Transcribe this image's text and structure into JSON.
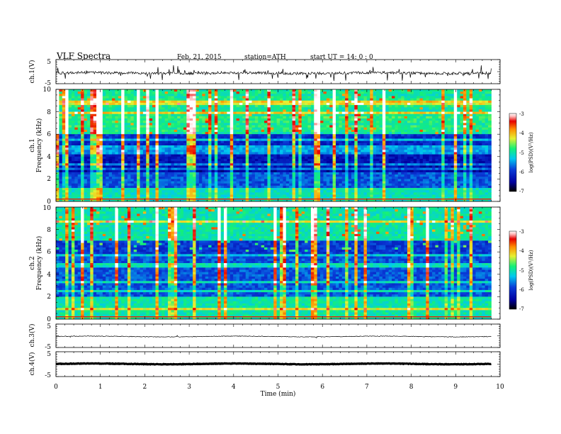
{
  "header": {
    "title": "VLF  Spectra",
    "date": "Feb. 21, 2015",
    "station": "station=ATH",
    "start": "start  UT  =    14: 0  : 0"
  },
  "colors": {
    "colormap": [
      "#000000",
      "#0000a0",
      "#0a3cd8",
      "#00c8f0",
      "#14f078",
      "#e6f032",
      "#ff8c00",
      "#e60000",
      "#ffb4b4",
      "#ffffff"
    ]
  },
  "chart_data": [
    {
      "type": "line",
      "panel": "ch1-waveform",
      "ylabel": "ch.1(V)",
      "ylim": [
        -5,
        5
      ],
      "yticks": [
        "5",
        "-5"
      ],
      "xlim": [
        0,
        10
      ],
      "description_of_series": "noisy waveform near -0.5 V with spikes"
    },
    {
      "type": "heatmap",
      "panel": "ch1-spectrogram",
      "ylabel": "Frequency  (kHz)",
      "channel_label": "ch.1",
      "ylim": [
        0,
        10
      ],
      "yticks": [
        "0",
        "2",
        "4",
        "6",
        "8",
        "10"
      ],
      "xlim": [
        0,
        10
      ],
      "colorbar": {
        "label": "log(PSD)(V²/Hz)",
        "range": [
          -7,
          -3
        ],
        "ticks": [
          "-3",
          "-4",
          "-5",
          "-6",
          "-7"
        ]
      }
    },
    {
      "type": "heatmap",
      "panel": "ch2-spectrogram",
      "ylabel": "Frequency  (kHz)",
      "channel_label": "ch.2",
      "ylim": [
        0,
        10
      ],
      "yticks": [
        "0",
        "2",
        "4",
        "6",
        "8",
        "10"
      ],
      "xlim": [
        0,
        10
      ],
      "colorbar": {
        "label": "log(PSD)(V²/Hz)",
        "range": [
          -7,
          -3
        ],
        "ticks": [
          "-3",
          "-4",
          "-5",
          "-6",
          "-7"
        ]
      }
    },
    {
      "type": "line",
      "panel": "ch3-waveform",
      "ylabel": "ch.3(V)",
      "ylim": [
        -5,
        5
      ],
      "yticks": [
        "5",
        "-5"
      ],
      "xlim": [
        0,
        10
      ]
    },
    {
      "type": "line",
      "panel": "ch4-waveform",
      "ylabel": "ch.4(V)",
      "ylim": [
        -5,
        5
      ],
      "yticks": [
        "5",
        "-5"
      ],
      "xlim": [
        0,
        10
      ]
    }
  ],
  "x_axis": {
    "label": "Time  (min)",
    "ticks": [
      "0",
      "1",
      "2",
      "3",
      "4",
      "5",
      "6",
      "7",
      "8",
      "9",
      "10"
    ],
    "data_end_min": 9.8
  }
}
